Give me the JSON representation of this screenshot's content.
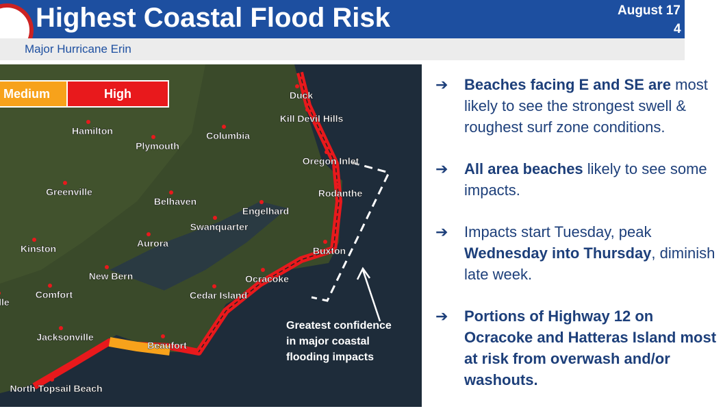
{
  "header": {
    "title": "Highest Coastal Flood Risk",
    "subtitle": "Major Hurricane Erin",
    "date": "August 17",
    "time": "4"
  },
  "legend": [
    "Medium",
    "High"
  ],
  "cities": [
    "Duck",
    "Kill Devil Hills",
    "Hamilton",
    "Plymouth",
    "Columbia",
    "Oregon Inlet",
    "Greenville",
    "Belhaven",
    "Engelhard",
    "Rodanthe",
    "Swanquarter",
    "Aurora",
    "Kinston",
    "Buxton",
    "New Bern",
    "Ocracoke",
    "Comfort",
    "Cedar Island",
    "ille",
    "Jacksonville",
    "Beaufort",
    "North Topsail Beach"
  ],
  "annotation": "Greatest confidence in major coastal flooding impacts",
  "bullets": [
    {
      "parts": [
        {
          "text": "Beaches facing E and SE are",
          "bold": true
        },
        {
          "text": " most likely to see the strongest swell & roughest surf zone conditions.",
          "bold": false
        }
      ]
    },
    {
      "parts": [
        {
          "text": "All area beaches",
          "bold": true
        },
        {
          "text": " likely to see some impacts.",
          "bold": false
        }
      ]
    },
    {
      "parts": [
        {
          "text": "Impacts start Tuesday, peak ",
          "bold": false
        },
        {
          "text": "Wednesday into Thursday",
          "bold": true
        },
        {
          "text": ", diminish late week.",
          "bold": false
        }
      ]
    },
    {
      "parts": [
        {
          "text": "Portions of Highway 12 on Ocracoke and Hatteras Island most at risk from overwash and/or washouts.",
          "bold": true
        }
      ]
    }
  ]
}
